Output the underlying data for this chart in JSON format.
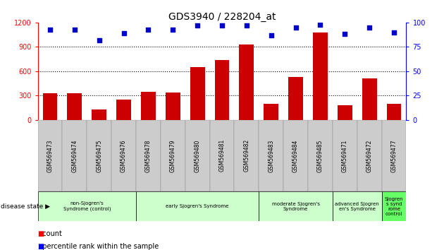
{
  "title": "GDS3940 / 228204_at",
  "samples": [
    "GSM569473",
    "GSM569474",
    "GSM569475",
    "GSM569476",
    "GSM569478",
    "GSM569479",
    "GSM569480",
    "GSM569481",
    "GSM569482",
    "GSM569483",
    "GSM569484",
    "GSM569485",
    "GSM569471",
    "GSM569472",
    "GSM569477"
  ],
  "counts": [
    330,
    330,
    130,
    250,
    345,
    340,
    650,
    740,
    930,
    200,
    530,
    1080,
    185,
    510,
    200
  ],
  "percentiles": [
    93,
    93,
    82,
    89,
    93,
    93,
    97,
    97,
    97,
    87,
    95,
    98,
    88,
    95,
    90
  ],
  "groups": [
    {
      "label": "non-Sjogren's\nSyndrome (control)",
      "start": 0,
      "end": 4,
      "color": "#ccffcc"
    },
    {
      "label": "early Sjogren's Syndrome",
      "start": 4,
      "end": 9,
      "color": "#ccffcc"
    },
    {
      "label": "moderate Sjogren's\nSyndrome",
      "start": 9,
      "end": 12,
      "color": "#ccffcc"
    },
    {
      "label": "advanced Sjogren\nen's Syndrome",
      "start": 12,
      "end": 14,
      "color": "#ccffcc"
    },
    {
      "label": "Sjogren\ns synd\nrome\ncontrol",
      "start": 14,
      "end": 15,
      "color": "#66ff66"
    }
  ],
  "ylim_left": [
    0,
    1200
  ],
  "ylim_right": [
    0,
    100
  ],
  "bar_color": "#cc0000",
  "dot_color": "#0000cc",
  "yticks_left": [
    0,
    300,
    600,
    900,
    1200
  ],
  "yticks_right": [
    0,
    25,
    50,
    75,
    100
  ],
  "background_color": "#ffffff",
  "tick_area_color": "#cccccc",
  "grid_levels": [
    300,
    600,
    900
  ]
}
